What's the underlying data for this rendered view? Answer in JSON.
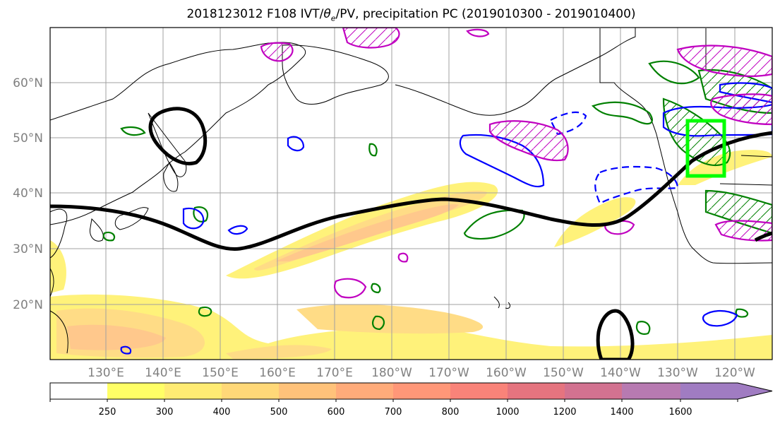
{
  "title": {
    "before": "2018123012 F108 IVT/",
    "theta": "θ",
    "sub": "e",
    "after": "/PV, precipitation PC (2019010300 - 2019010400)"
  },
  "map": {
    "lat_labels": [
      "60°N",
      "50°N",
      "40°N",
      "30°N",
      "20°N"
    ],
    "lon_labels": [
      "130°E",
      "140°E",
      "150°E",
      "160°E",
      "170°E",
      "180°W",
      "170°W",
      "160°W",
      "150°W",
      "140°W",
      "130°W",
      "120°W"
    ]
  },
  "colorbar": {
    "ticks": [
      "250",
      "300",
      "400",
      "500",
      "600",
      "700",
      "800",
      "1000",
      "1200",
      "1400",
      "1600"
    ],
    "colors": [
      "#ffffff",
      "#ffff66",
      "#ffeb73",
      "#ffd878",
      "#ffc27a",
      "#ffab7a",
      "#ff9778",
      "#f98379",
      "#e5747f",
      "#d27290",
      "#b77ab1",
      "#a07cc2"
    ]
  },
  "contour_colors": {
    "ivt_fill": "#ffec6e",
    "pv_pos": "#0000ff",
    "theta_e": "#008000",
    "pv_neg": "#c000c0",
    "box": "#00ff00",
    "jet": "#000000"
  }
}
